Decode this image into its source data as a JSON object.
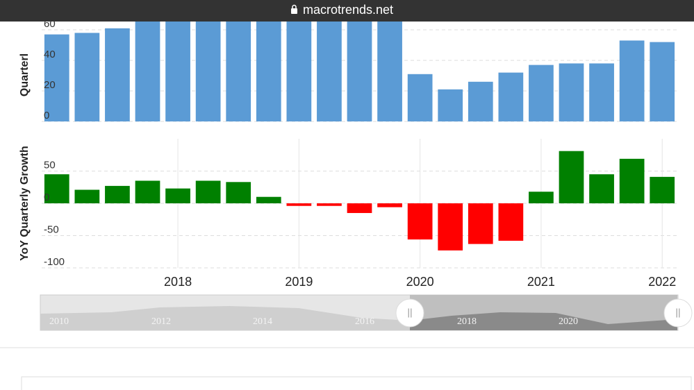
{
  "browser": {
    "url": "macrotrends.net"
  },
  "charts": [
    {
      "type": "bar",
      "ylabel": "Quarterl",
      "color": "#5b9bd5",
      "values": [
        57,
        58,
        61,
        68,
        68,
        68,
        68,
        68,
        68,
        68,
        68,
        68,
        31,
        21,
        26,
        32,
        37,
        38,
        38,
        53,
        52
      ],
      "ylim": [
        0,
        70
      ],
      "yticks": [
        0,
        20,
        40,
        60
      ],
      "grid": true
    },
    {
      "type": "bar",
      "ylabel": "YoY Quarterly Growth",
      "positive_color": "#008000",
      "negative_color": "#ff0000",
      "categories": [
        null,
        null,
        null,
        null,
        "2018",
        null,
        null,
        null,
        "2019",
        null,
        null,
        null,
        "2020",
        null,
        null,
        null,
        "2021",
        null,
        null,
        null,
        "2022"
      ],
      "values": [
        45,
        21,
        27,
        35,
        23,
        35,
        33,
        10,
        -4,
        -4,
        -15,
        -6,
        -56,
        -73,
        -63,
        -58,
        18,
        81,
        45,
        69,
        41
      ],
      "ylim": [
        -100,
        100
      ],
      "yticks": [
        -100,
        -50,
        0,
        50
      ],
      "grid": true
    }
  ],
  "navigator": {
    "labels": [
      "2010",
      "2012",
      "2014",
      "2016",
      "2018",
      "2020"
    ]
  }
}
